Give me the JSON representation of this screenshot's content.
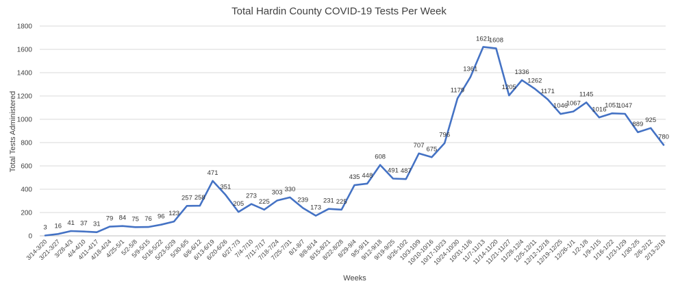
{
  "chart_data": {
    "type": "line",
    "title": "Total Hardin County COVID-19 Tests Per Week",
    "xlabel": "Weeks",
    "ylabel": "Total Tests Administered",
    "ylim": [
      0,
      1800
    ],
    "yticks": [
      0,
      200,
      400,
      600,
      800,
      1000,
      1200,
      1400,
      1600,
      1800
    ],
    "grid": true,
    "legend": "none",
    "line_color": "#4472c4",
    "categories": [
      "3/14-3/20",
      "3/21-3/27",
      "3/28-4/3",
      "4/4-4/10",
      "4/11-4/17",
      "4/18-4/24",
      "4/25-5/1",
      "5/2-5/8",
      "5/9-5/15",
      "5/16-5/22",
      "5/23-5/29",
      "5/30-6/5",
      "6/6-6/12",
      "6/13-6/19",
      "6/20-6/26",
      "6/27-7/3",
      "7/4-7/10",
      "7/11-7/17",
      "7/18-7/24",
      "7/25-7/31",
      "8/1-8/7",
      "8/8-8/14",
      "8/15-8/21",
      "8/22-8/28",
      "8/29-9/4",
      "9/5-9/11",
      "9/12-9/18",
      "9/19-9/25",
      "9/26-10/2",
      "10/3-10/9",
      "10/10-10/16",
      "10/17-10/23",
      "10/24-10/30",
      "10/31-11/6",
      "11/7-11/13",
      "11/14-11/20",
      "11/21-11/27",
      "11/28-12/4",
      "12/5-12/11",
      "12/12-12/18",
      "12/19-12/25",
      "12/26-1/1",
      "1/2-1/8",
      "1/9-1/15",
      "1/16-1/22",
      "1/23-1/29",
      "1/30-2/5",
      "2/6-2/12",
      "2/13-2/19"
    ],
    "series": [
      {
        "values": [
          3,
          16,
          41,
          37,
          31,
          79,
          84,
          75,
          76,
          96,
          123,
          257,
          258,
          471,
          351,
          205,
          273,
          225,
          303,
          330,
          239,
          173,
          231,
          225,
          435,
          448,
          608,
          491,
          487,
          707,
          675,
          796,
          1179,
          1361,
          1621,
          1608,
          1205,
          1336,
          1262,
          1171,
          1046,
          1067,
          1145,
          1016,
          1051,
          1047,
          889,
          925,
          780
        ]
      }
    ]
  }
}
